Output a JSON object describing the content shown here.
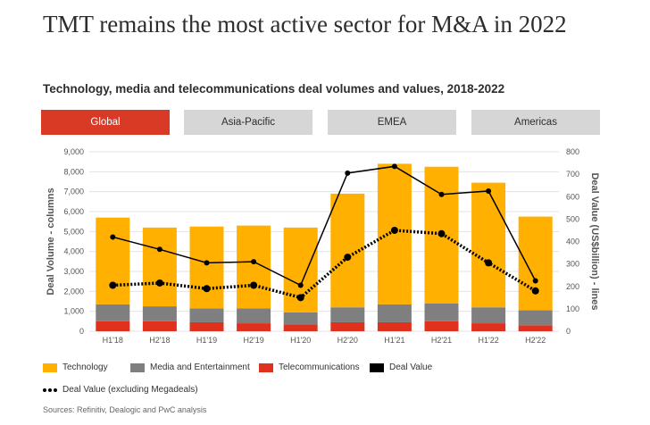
{
  "header": {
    "title": "TMT remains the most active sector for M&A in 2022",
    "subtitle": "Technology, media and telecommunications deal volumes and values, 2018-2022"
  },
  "tabs": [
    {
      "label": "Global",
      "active": true
    },
    {
      "label": "Asia-Pacific",
      "active": false
    },
    {
      "label": "EMEA",
      "active": false
    },
    {
      "label": "Americas",
      "active": false
    }
  ],
  "colors": {
    "technology": "#ffb000",
    "media": "#7f7f7f",
    "telecom": "#e0301e",
    "deal_value": "#000000",
    "active_tab": "#d93a26"
  },
  "chart_data": {
    "type": "bar",
    "stacked": true,
    "categories": [
      "H1'18",
      "H2'18",
      "H1'19",
      "H2'19",
      "H1'20",
      "H2'20",
      "H1'21",
      "H2'21",
      "H1'22",
      "H2'22"
    ],
    "series": [
      {
        "name": "Technology",
        "axis": "left",
        "values": [
          4350,
          3950,
          4100,
          4150,
          4250,
          5700,
          7050,
          6850,
          6250,
          4700
        ]
      },
      {
        "name": "Media and Entertainment",
        "axis": "left",
        "values": [
          850,
          750,
          700,
          750,
          600,
          750,
          900,
          900,
          800,
          750
        ]
      },
      {
        "name": "Telecommunications",
        "axis": "left",
        "values": [
          500,
          500,
          450,
          400,
          350,
          450,
          450,
          500,
          400,
          300
        ]
      },
      {
        "name": "Deal Value",
        "axis": "right",
        "type": "line",
        "values": [
          420,
          365,
          305,
          310,
          205,
          705,
          735,
          610,
          625,
          225
        ]
      },
      {
        "name": "Deal Value (excluding Megadeals)",
        "axis": "right",
        "type": "line",
        "style": "dotted",
        "values": [
          205,
          215,
          190,
          205,
          150,
          330,
          450,
          435,
          305,
          180
        ]
      }
    ],
    "ylabel": "Deal Volume - columns",
    "y2label": "Deal Value (US$billion) - lines",
    "ylim": [
      0,
      9000
    ],
    "y2lim": [
      0,
      800
    ],
    "yticks": [
      "0",
      "1,000",
      "2,000",
      "3,000",
      "4,000",
      "5,000",
      "6,000",
      "7,000",
      "8,000",
      "9,000"
    ],
    "y2ticks": [
      "0",
      "100",
      "200",
      "300",
      "400",
      "500",
      "600",
      "700",
      "800"
    ],
    "grid": true,
    "legend": "bottom"
  },
  "footer": {
    "source": "Sources: Refinitiv, Dealogic and PwC analysis"
  }
}
